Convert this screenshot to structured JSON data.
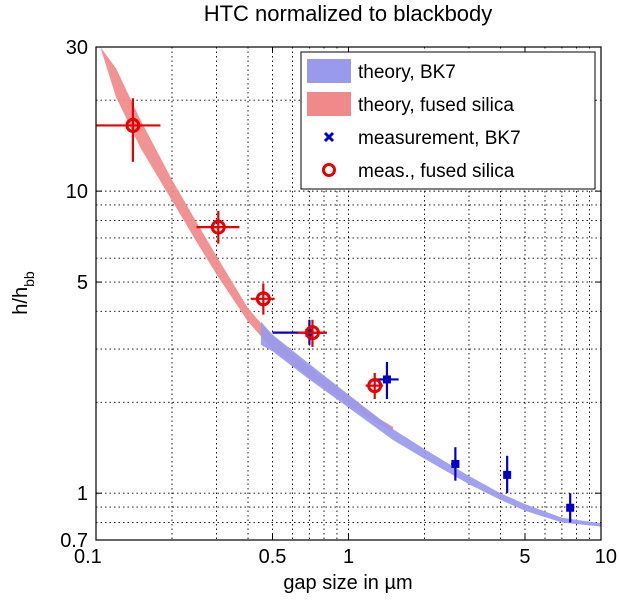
{
  "chart_data": {
    "type": "scatter",
    "title": "HTC normalized to blackbody",
    "xlabel": "gap size in µm",
    "ylabel_main": "h/h",
    "ylabel_sub": "bb",
    "xscale": "log",
    "yscale": "log",
    "xlim": [
      0.1,
      10
    ],
    "ylim": [
      0.7,
      30
    ],
    "grid": true,
    "legend_location": "top-right",
    "x_ticks": [
      {
        "value": 0.1,
        "label": "0.1"
      },
      {
        "value": 0.5,
        "label": "0.5"
      },
      {
        "value": 1,
        "label": "1"
      },
      {
        "value": 5,
        "label": "5"
      },
      {
        "value": 10,
        "label": "10"
      }
    ],
    "y_ticks": [
      {
        "value": 0.7,
        "label": "0.7"
      },
      {
        "value": 1,
        "label": "1"
      },
      {
        "value": 5,
        "label": "5"
      },
      {
        "value": 10,
        "label": "10"
      },
      {
        "value": 30,
        "label": "30"
      }
    ],
    "legend": [
      {
        "label": "theory, BK7",
        "kind": "band",
        "color": "#9999ee"
      },
      {
        "label": "theory, fused silica",
        "kind": "band",
        "color": "#f08a8a"
      },
      {
        "label": "measurement, BK7",
        "kind": "marker-x",
        "color": "#0000c8"
      },
      {
        "label": "meas., fused silica",
        "kind": "marker-o",
        "color": "#e60000"
      }
    ],
    "series": [
      {
        "name": "theory, fused silica",
        "kind": "band",
        "color": "#f08a8a",
        "x": [
          0.104,
          0.12,
          0.15,
          0.2,
          0.25,
          0.3,
          0.4,
          0.5,
          0.7,
          1.0,
          1.3,
          1.5
        ],
        "upper": [
          30,
          25.5,
          17.2,
          10.9,
          7.9,
          6.1,
          4.1,
          3.3,
          2.62,
          2.1,
          1.78,
          1.66
        ],
        "lower": [
          30,
          20.5,
          13.9,
          9.3,
          6.8,
          5.3,
          3.7,
          3.0,
          2.42,
          1.96,
          1.7,
          1.6
        ]
      },
      {
        "name": "theory, BK7",
        "kind": "band",
        "color": "#9999ee",
        "x": [
          0.45,
          0.5,
          0.7,
          1.0,
          1.5,
          2,
          3,
          4,
          5,
          7,
          10
        ],
        "upper": [
          3.7,
          3.35,
          2.68,
          2.12,
          1.63,
          1.4,
          1.14,
          1.0,
          0.92,
          0.83,
          0.795
        ],
        "lower": [
          3.1,
          2.95,
          2.38,
          1.92,
          1.5,
          1.3,
          1.07,
          0.95,
          0.875,
          0.8,
          0.775
        ]
      },
      {
        "name": "measurement, BK7",
        "kind": "points",
        "marker": "x",
        "color": "#0000c8",
        "points": [
          {
            "x": 0.7,
            "y": 3.4,
            "x_err": [
              0.5,
              0.82
            ],
            "y_err": [
              3.1,
              3.75
            ]
          },
          {
            "x": 1.42,
            "y": 2.38,
            "x_err": [
              1.28,
              1.58
            ],
            "y_err": [
              2.05,
              2.72
            ]
          },
          {
            "x": 2.65,
            "y": 1.25,
            "x_err": [
              2.55,
              2.75
            ],
            "y_err": [
              1.1,
              1.42
            ]
          },
          {
            "x": 4.25,
            "y": 1.15,
            "x_err": [
              4.15,
              4.35
            ],
            "y_err": [
              1.0,
              1.33
            ]
          },
          {
            "x": 7.55,
            "y": 0.895,
            "x_err": [
              7.45,
              7.65
            ],
            "y_err": [
              0.8,
              1.0
            ]
          }
        ]
      },
      {
        "name": "meas., fused silica",
        "kind": "points",
        "marker": "o",
        "color": "#e60000",
        "points": [
          {
            "x": 0.14,
            "y": 16.5,
            "x_err": [
              0.1,
              0.18
            ],
            "y_err": [
              12.5,
              20.3
            ]
          },
          {
            "x": 0.305,
            "y": 7.6,
            "x_err": [
              0.25,
              0.37
            ],
            "y_err": [
              6.7,
              8.6
            ]
          },
          {
            "x": 0.46,
            "y": 4.4,
            "x_err": [
              0.41,
              0.51
            ],
            "y_err": [
              3.9,
              4.95
            ]
          },
          {
            "x": 0.72,
            "y": 3.4,
            "x_err": [
              0.63,
              0.82
            ],
            "y_err": [
              3.05,
              3.75
            ]
          },
          {
            "x": 1.27,
            "y": 2.27,
            "x_err": [
              1.17,
              1.37
            ],
            "y_err": [
              2.05,
              2.5
            ]
          }
        ]
      }
    ]
  }
}
